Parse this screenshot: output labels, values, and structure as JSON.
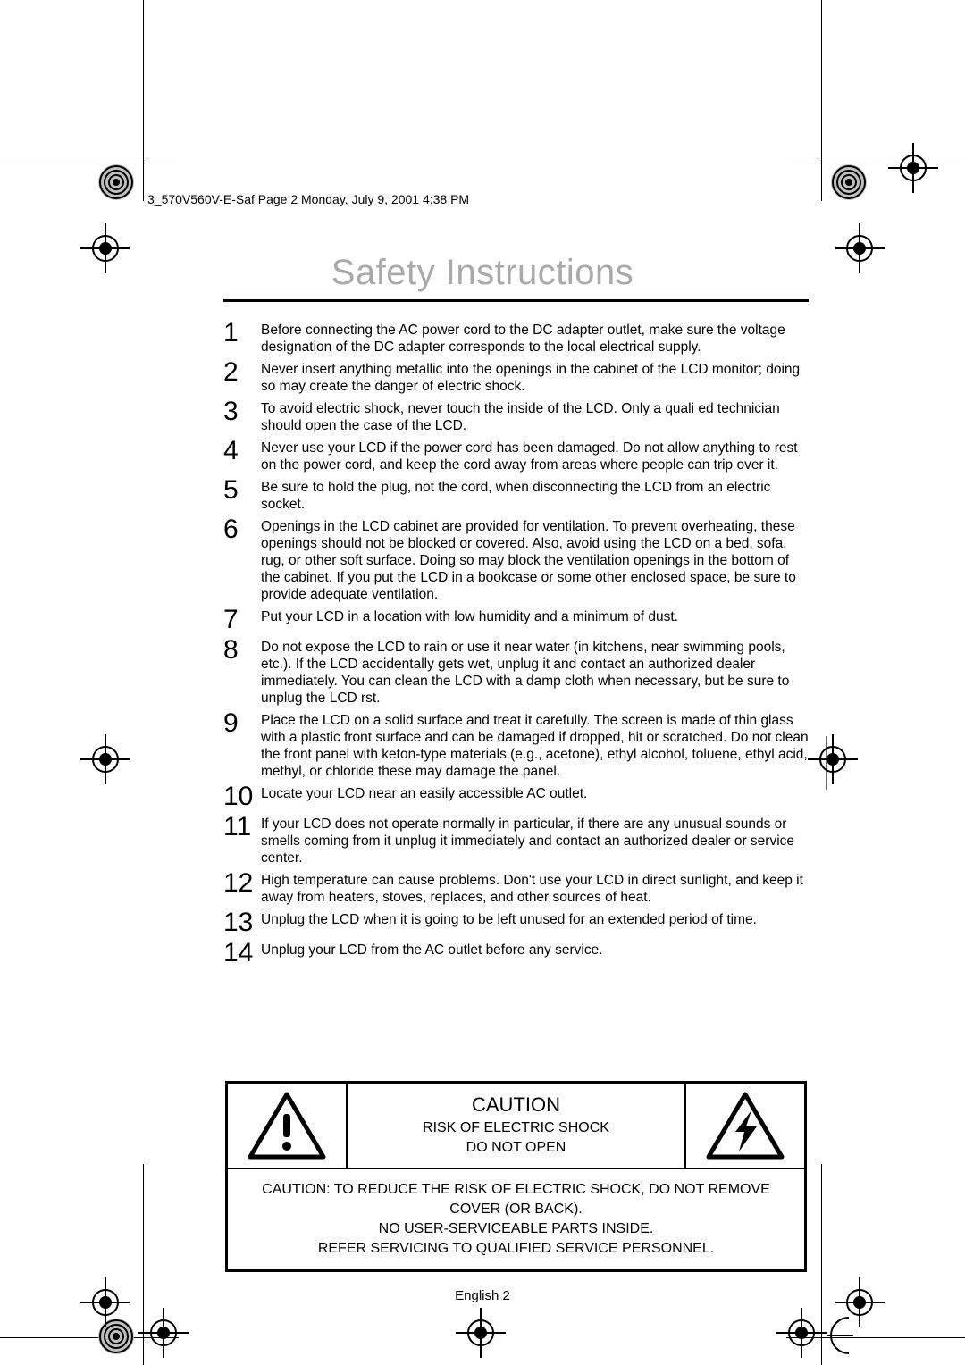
{
  "header": "3_570V560V-E-Saf  Page 2  Monday, July 9, 2001  4:38 PM",
  "title": "Safety Instructions",
  "instructions": [
    {
      "n": "1",
      "t": "Before connecting the AC power cord to the DC adapter outlet, make sure the voltage designation of the DC adapter corresponds to the local electrical supply."
    },
    {
      "n": "2",
      "t": "Never insert anything metallic into the openings in the cabinet of the LCD monitor; doing so may create the danger of electric shock."
    },
    {
      "n": "3",
      "t": "To avoid electric shock, never touch the inside of the LCD. Only a quali ed technician should open the case of the LCD."
    },
    {
      "n": "4",
      "t": "Never use your LCD if the power cord has been damaged. Do not allow anything to rest on the power cord, and keep the cord away from areas where people can trip over it."
    },
    {
      "n": "5",
      "t": "Be sure to hold the plug, not the cord, when disconnecting the LCD from an electric socket."
    },
    {
      "n": "6",
      "t": "Openings in the LCD cabinet are provided for ventilation. To prevent overheating, these openings should not be blocked or covered. Also, avoid using the LCD on a bed, sofa, rug, or other soft surface. Doing so may block the ventilation openings in the bottom of the cabinet. If you put the LCD in a bookcase or some other enclosed space, be sure to provide adequate ventilation."
    },
    {
      "n": "7",
      "t": "Put your LCD in a location with low humidity and a minimum of dust."
    },
    {
      "n": "8",
      "t": "Do not expose the LCD to rain or use it near water (in kitchens, near swimming pools, etc.). If the LCD accidentally gets wet, unplug it and contact an authorized dealer immediately. You can clean the LCD with a damp cloth when necessary, but be sure to unplug the LCD  rst."
    },
    {
      "n": "9",
      "t": "Place the LCD on a solid surface and treat it carefully. The screen is made of thin glass with a plastic front surface and can be damaged if dropped, hit or scratched. Do not clean the front panel with keton-type materials (e.g., acetone), ethyl alcohol, toluene, ethyl acid, methyl, or chloride these may damage the panel."
    },
    {
      "n": "10",
      "t": "Locate your LCD near an easily accessible AC outlet."
    },
    {
      "n": "11",
      "t": "If your LCD does not operate normally in particular, if there are any unusual sounds or smells coming from it unplug it immediately and contact an authorized dealer or service center."
    },
    {
      "n": "12",
      "t": "High temperature can cause problems. Don't use your LCD in direct sunlight, and keep it away from heaters, stoves, replaces, and other sources of heat."
    },
    {
      "n": "13",
      "t": "Unplug the LCD when it is going to be left unused for an extended period of time."
    },
    {
      "n": "14",
      "t": "Unplug your LCD from the AC outlet before any service."
    }
  ],
  "caution": {
    "heading": "CAUTION",
    "sub1": "RISK OF ELECTRIC SHOCK",
    "sub2": "DO NOT OPEN",
    "body1": "CAUTION: TO REDUCE THE RISK OF ELECTRIC SHOCK, DO NOT REMOVE COVER (OR BACK).",
    "body2": "NO USER-SERVICEABLE PARTS INSIDE.",
    "body3": "REFER SERVICING TO QUALIFIED SERVICE PERSONNEL."
  },
  "footer": "English     2"
}
